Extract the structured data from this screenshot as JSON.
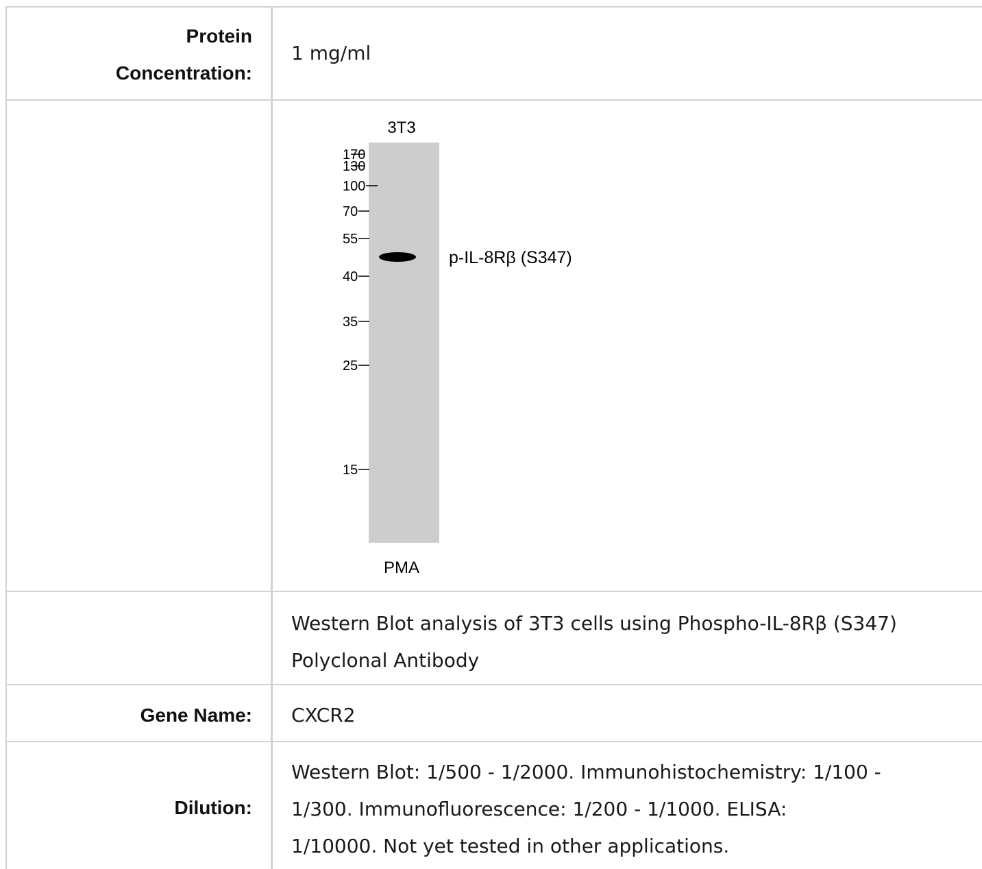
{
  "rows": {
    "protein_concentration": {
      "label_line1": "Protein",
      "label_line2": "Concentration:",
      "value": "1 mg/ml"
    },
    "figure": {
      "lane_header": "3T3",
      "treatment": "PMA",
      "band_label": "p-IL-8Rβ (S347)",
      "markers": [
        "170",
        "130",
        "100",
        "70",
        "55",
        "40",
        "35",
        "25",
        "15"
      ]
    },
    "caption": {
      "line1": "Western Blot analysis of 3T3 cells using Phospho-IL-8Rβ (S347)",
      "line2": "Polyclonal Antibody"
    },
    "gene_name": {
      "label": "Gene Name:",
      "value": "CXCR2"
    },
    "dilution": {
      "label": "Dilution:",
      "line1": "Western Blot: 1/500 - 1/2000. Immunohistochemistry: 1/100 -",
      "line2": "1/300. Immunofluorescence: 1/200 - 1/1000. ELISA:",
      "line3": "1/10000. Not yet tested in other applications."
    }
  }
}
